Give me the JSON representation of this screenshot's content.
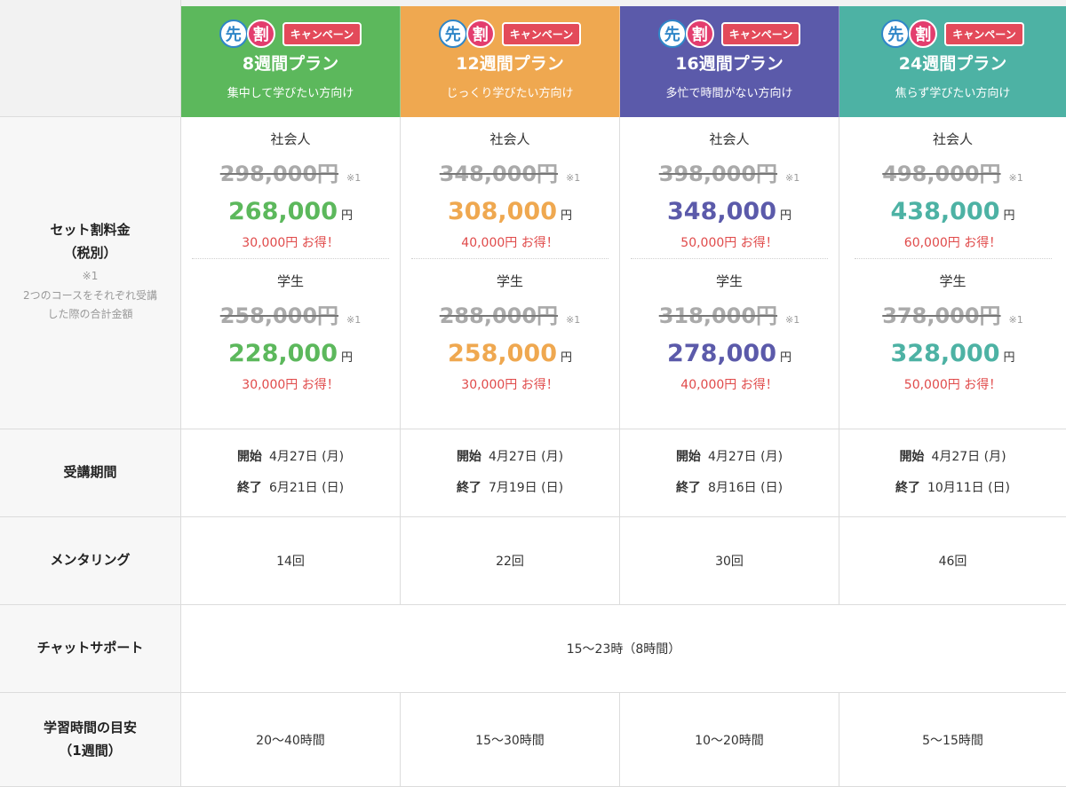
{
  "campaign": {
    "circle1": "先",
    "circle2": "割",
    "label": "キャンペーン"
  },
  "colors": {
    "green": "#5cb85c",
    "orange": "#efa850",
    "purple": "#5b5aaa",
    "teal": "#4db2a4"
  },
  "rows": {
    "price_label_1": "セット割料金",
    "price_label_2": "（税別）",
    "price_note_mark": "※1",
    "price_note_1": "2つのコースをそれぞれ受講",
    "price_note_2": "した際の合計金額",
    "period": "受講期間",
    "mentoring": "メンタリング",
    "chat": "チャットサポート",
    "study_1": "学習時間の目安",
    "study_2": "（1週間）"
  },
  "labels": {
    "worker": "社会人",
    "student": "学生",
    "mark": "※1",
    "yen": "円",
    "start": "開始",
    "end": "終了"
  },
  "chat_hours": "15〜23時（8時間）",
  "plans": [
    {
      "title": "8週間プラン",
      "subtitle": "集中して学びたい方向け",
      "worker": {
        "orig": "298,000円",
        "sale": "268,000",
        "save": "30,000円 お得！"
      },
      "student": {
        "orig": "258,000円",
        "sale": "228,000",
        "save": "30,000円 お得！"
      },
      "start": "4月27日 (月)",
      "end": "6月21日 (日)",
      "mentoring": "14回",
      "study": "20〜40時間"
    },
    {
      "title": "12週間プラン",
      "subtitle": "じっくり学びたい方向け",
      "worker": {
        "orig": "348,000円",
        "sale": "308,000",
        "save": "40,000円 お得！"
      },
      "student": {
        "orig": "288,000円",
        "sale": "258,000",
        "save": "30,000円 お得！"
      },
      "start": "4月27日 (月)",
      "end": "7月19日 (日)",
      "mentoring": "22回",
      "study": "15〜30時間"
    },
    {
      "title": "16週間プラン",
      "subtitle": "多忙で時間がない方向け",
      "worker": {
        "orig": "398,000円",
        "sale": "348,000",
        "save": "50,000円 お得！"
      },
      "student": {
        "orig": "318,000円",
        "sale": "278,000",
        "save": "40,000円 お得！"
      },
      "start": "4月27日 (月)",
      "end": "8月16日 (日)",
      "mentoring": "30回",
      "study": "10〜20時間"
    },
    {
      "title": "24週間プラン",
      "subtitle": "焦らず学びたい方向け",
      "worker": {
        "orig": "498,000円",
        "sale": "438,000",
        "save": "60,000円 お得！"
      },
      "student": {
        "orig": "378,000円",
        "sale": "328,000",
        "save": "50,000円 お得！"
      },
      "start": "4月27日 (月)",
      "end": "10月11日 (日)",
      "mentoring": "46回",
      "study": "5〜15時間"
    }
  ]
}
